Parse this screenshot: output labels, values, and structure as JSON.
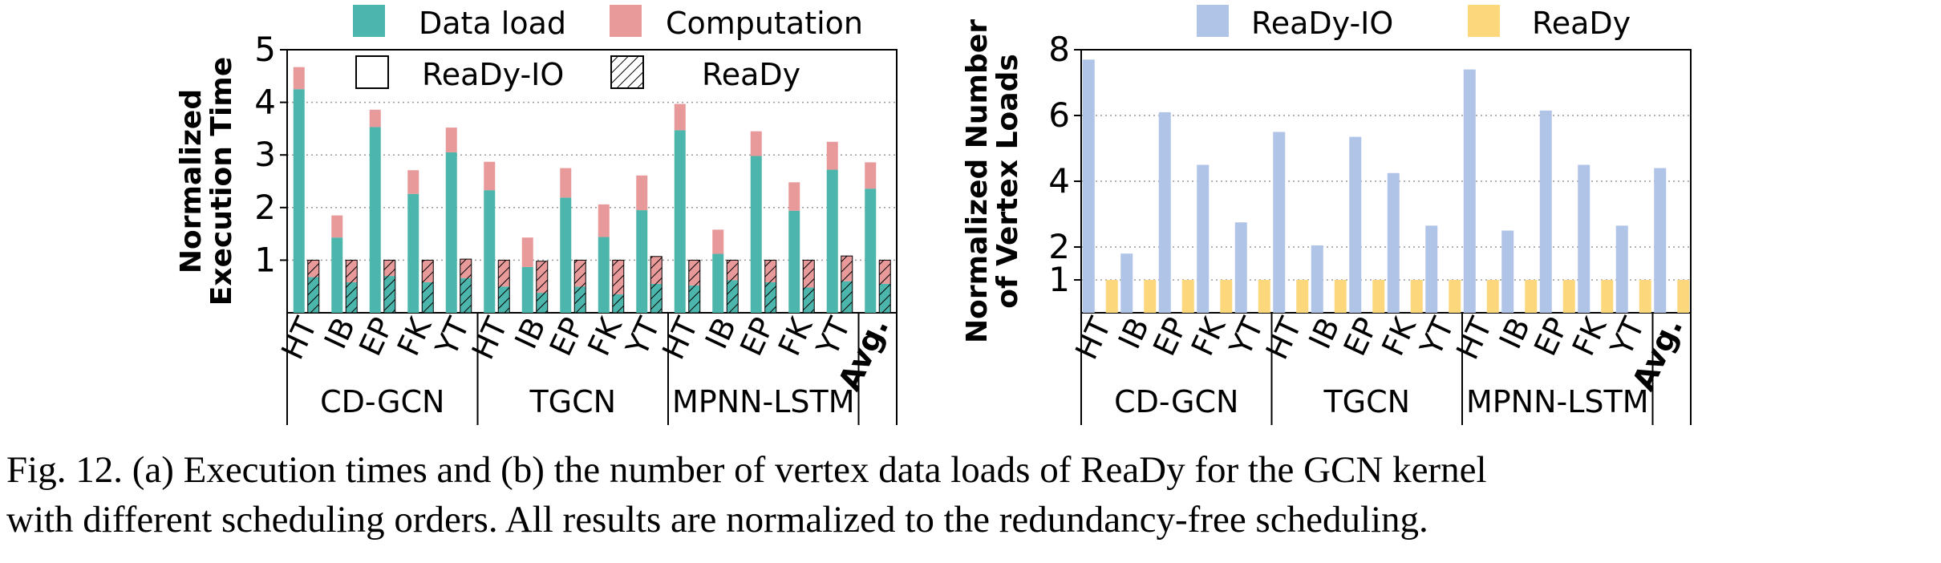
{
  "colors": {
    "data_load": "#4db6ac",
    "computation": "#e8999a",
    "readyio": "#b0c4e8",
    "ready": "#fdd77c"
  },
  "chart_data": [
    {
      "panel_label": "(a)",
      "type": "bar",
      "subtype": "stacked-grouped",
      "ylabel": "Normalized\nExecution Time",
      "ylim": [
        0,
        5
      ],
      "yticks": [
        "1",
        "2",
        "3",
        "4",
        "5"
      ],
      "groups": [
        {
          "name": "CD-GCN",
          "categories": [
            "HT",
            "IB",
            "EP",
            "FK",
            "YT"
          ]
        },
        {
          "name": "TGCN",
          "categories": [
            "HT",
            "IB",
            "EP",
            "FK",
            "YT"
          ]
        },
        {
          "name": "MPNN-LSTM",
          "categories": [
            "HT",
            "IB",
            "EP",
            "FK",
            "YT"
          ]
        },
        {
          "name": "",
          "categories": [
            "Avg."
          ]
        }
      ],
      "legend": {
        "components": [
          "Data load",
          "Computation"
        ],
        "schedulers": [
          "ReaDy-IO",
          "ReaDy"
        ]
      },
      "bars": {
        "ReaDy-IO": {
          "Data load": [
            4.25,
            1.43,
            3.53,
            2.26,
            3.05,
            2.33,
            0.87,
            2.19,
            1.44,
            1.95,
            3.47,
            1.12,
            2.98,
            1.94,
            2.72,
            2.36
          ],
          "Computation": [
            0.42,
            0.42,
            0.33,
            0.45,
            0.47,
            0.54,
            0.56,
            0.56,
            0.62,
            0.66,
            0.5,
            0.46,
            0.47,
            0.54,
            0.53,
            0.5
          ]
        },
        "ReaDy": {
          "Data load": [
            0.68,
            0.58,
            0.7,
            0.58,
            0.66,
            0.5,
            0.38,
            0.5,
            0.35,
            0.55,
            0.52,
            0.62,
            0.58,
            0.48,
            0.6,
            0.55
          ],
          "Computation": [
            0.32,
            0.42,
            0.3,
            0.42,
            0.36,
            0.5,
            0.6,
            0.5,
            0.65,
            0.52,
            0.48,
            0.38,
            0.42,
            0.52,
            0.48,
            0.45
          ]
        }
      },
      "grid": "horizontal dotted"
    },
    {
      "panel_label": "(b)",
      "type": "bar",
      "subtype": "grouped",
      "ylabel": "Normalized Number\nof Vertex Loads",
      "ylim": [
        0,
        8
      ],
      "yticks": [
        "1",
        "2",
        "4",
        "6",
        "8"
      ],
      "groups": [
        {
          "name": "CD-GCN",
          "categories": [
            "HT",
            "IB",
            "EP",
            "FK",
            "YT"
          ]
        },
        {
          "name": "TGCN",
          "categories": [
            "HT",
            "IB",
            "EP",
            "FK",
            "YT"
          ]
        },
        {
          "name": "MPNN-LSTM",
          "categories": [
            "HT",
            "IB",
            "EP",
            "FK",
            "YT"
          ]
        },
        {
          "name": "",
          "categories": [
            "Avg."
          ]
        }
      ],
      "series": [
        {
          "name": "ReaDy-IO",
          "values": [
            7.7,
            1.8,
            6.1,
            4.5,
            2.75,
            5.5,
            2.05,
            5.35,
            4.25,
            2.65,
            7.4,
            2.5,
            6.15,
            4.5,
            2.65,
            4.4
          ]
        },
        {
          "name": "ReaDy",
          "values": [
            1,
            1,
            1,
            1,
            1,
            1,
            1,
            1,
            1,
            1,
            1,
            1,
            1,
            1,
            1,
            1
          ]
        }
      ],
      "grid": "horizontal dotted"
    }
  ],
  "caption": {
    "line1": "Fig. 12.  (a) Execution times and (b) the number of vertex data loads of ReaDy for the GCN kernel",
    "line2": "with different scheduling orders. All results are normalized to the redundancy-free scheduling."
  }
}
